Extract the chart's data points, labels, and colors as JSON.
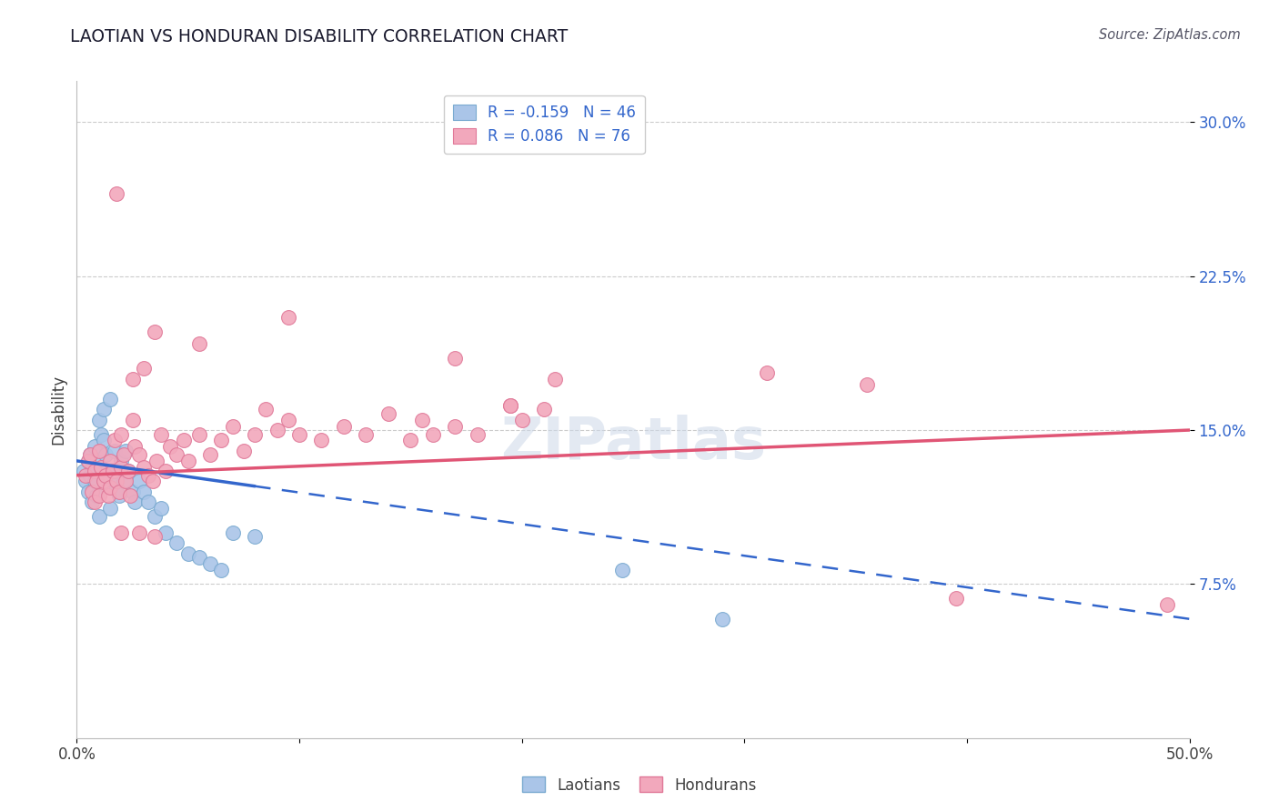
{
  "title": "LAOTIAN VS HONDURAN DISABILITY CORRELATION CHART",
  "source": "Source: ZipAtlas.com",
  "ylabel": "Disability",
  "xlim": [
    0.0,
    0.5
  ],
  "ylim": [
    0.0,
    0.32
  ],
  "ytick_positions": [
    0.075,
    0.15,
    0.225,
    0.3
  ],
  "ytick_labels": [
    "7.5%",
    "15.0%",
    "22.5%",
    "30.0%"
  ],
  "grid_color": "#cccccc",
  "background_color": "#ffffff",
  "laotian_color": "#aac5e8",
  "honduran_color": "#f2a8bc",
  "laotian_edge": "#7aaad0",
  "honduran_edge": "#e07898",
  "laotian_line_color": "#3366cc",
  "honduran_line_color": "#e05575",
  "r_laotian": -0.159,
  "n_laotian": 46,
  "r_honduran": 0.086,
  "n_honduran": 76,
  "lao_x": [
    0.003,
    0.004,
    0.005,
    0.005,
    0.006,
    0.006,
    0.007,
    0.007,
    0.008,
    0.008,
    0.009,
    0.009,
    0.01,
    0.01,
    0.011,
    0.012,
    0.012,
    0.013,
    0.014,
    0.015,
    0.015,
    0.016,
    0.017,
    0.018,
    0.019,
    0.02,
    0.021,
    0.022,
    0.023,
    0.025,
    0.026,
    0.028,
    0.03,
    0.032,
    0.035,
    0.038,
    0.04,
    0.045,
    0.05,
    0.055,
    0.06,
    0.065,
    0.07,
    0.08,
    0.245,
    0.29
  ],
  "lao_y": [
    0.13,
    0.125,
    0.135,
    0.12,
    0.128,
    0.138,
    0.132,
    0.115,
    0.142,
    0.125,
    0.135,
    0.118,
    0.155,
    0.108,
    0.148,
    0.16,
    0.145,
    0.138,
    0.13,
    0.165,
    0.112,
    0.125,
    0.14,
    0.13,
    0.118,
    0.135,
    0.125,
    0.14,
    0.13,
    0.12,
    0.115,
    0.125,
    0.12,
    0.115,
    0.108,
    0.112,
    0.1,
    0.095,
    0.09,
    0.088,
    0.085,
    0.082,
    0.1,
    0.098,
    0.082,
    0.058
  ],
  "hon_x": [
    0.004,
    0.005,
    0.006,
    0.007,
    0.008,
    0.008,
    0.009,
    0.01,
    0.01,
    0.011,
    0.012,
    0.013,
    0.014,
    0.015,
    0.015,
    0.016,
    0.017,
    0.018,
    0.019,
    0.02,
    0.02,
    0.021,
    0.022,
    0.023,
    0.024,
    0.025,
    0.026,
    0.028,
    0.03,
    0.032,
    0.034,
    0.036,
    0.038,
    0.04,
    0.042,
    0.045,
    0.048,
    0.05,
    0.055,
    0.06,
    0.065,
    0.07,
    0.075,
    0.08,
    0.085,
    0.09,
    0.095,
    0.1,
    0.11,
    0.12,
    0.13,
    0.14,
    0.15,
    0.155,
    0.16,
    0.17,
    0.18,
    0.195,
    0.2,
    0.21,
    0.018,
    0.025,
    0.03,
    0.035,
    0.055,
    0.095,
    0.17,
    0.195,
    0.215,
    0.31,
    0.355,
    0.395,
    0.49,
    0.02,
    0.028,
    0.035
  ],
  "hon_y": [
    0.128,
    0.135,
    0.138,
    0.12,
    0.13,
    0.115,
    0.125,
    0.14,
    0.118,
    0.132,
    0.125,
    0.128,
    0.118,
    0.122,
    0.135,
    0.13,
    0.145,
    0.125,
    0.12,
    0.132,
    0.148,
    0.138,
    0.125,
    0.13,
    0.118,
    0.155,
    0.142,
    0.138,
    0.132,
    0.128,
    0.125,
    0.135,
    0.148,
    0.13,
    0.142,
    0.138,
    0.145,
    0.135,
    0.148,
    0.138,
    0.145,
    0.152,
    0.14,
    0.148,
    0.16,
    0.15,
    0.155,
    0.148,
    0.145,
    0.152,
    0.148,
    0.158,
    0.145,
    0.155,
    0.148,
    0.152,
    0.148,
    0.162,
    0.155,
    0.16,
    0.265,
    0.175,
    0.18,
    0.198,
    0.192,
    0.205,
    0.185,
    0.162,
    0.175,
    0.178,
    0.172,
    0.068,
    0.065,
    0.1,
    0.1,
    0.098
  ],
  "lao_line_x0": 0.0,
  "lao_line_x_solid_end": 0.08,
  "lao_line_x1": 0.5,
  "lao_line_y0": 0.135,
  "lao_line_y1": 0.058,
  "hon_line_x0": 0.0,
  "hon_line_x1": 0.5,
  "hon_line_y0": 0.128,
  "hon_line_y1": 0.15
}
